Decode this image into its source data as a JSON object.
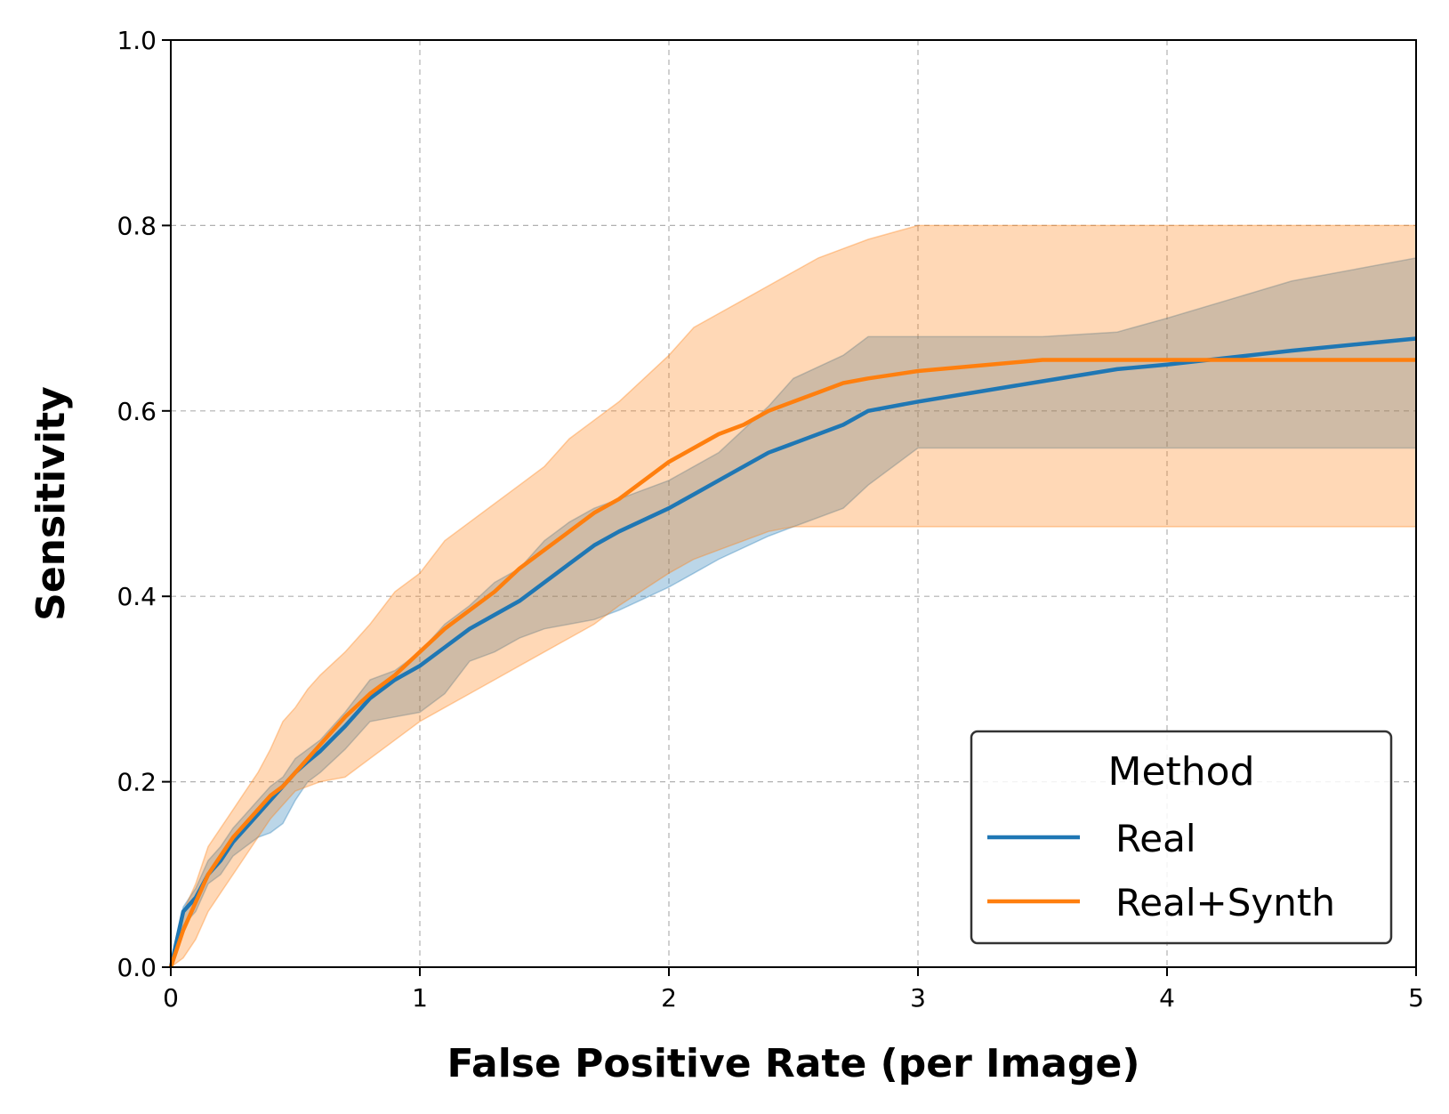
{
  "colors": {
    "real": "#1f77b4",
    "real_synth": "#ff7f0e"
  },
  "chart_data": {
    "type": "line",
    "title": "",
    "xlabel": "False Positive Rate (per Image)",
    "ylabel": "Sensitivity",
    "xlim": [
      0,
      5
    ],
    "ylim": [
      0,
      1.0
    ],
    "grid": true,
    "xticks": [
      0,
      1,
      2,
      3,
      4,
      5
    ],
    "xtick_labels": [
      "0",
      "1",
      "2",
      "3",
      "4",
      "5"
    ],
    "yticks": [
      0.0,
      0.2,
      0.4,
      0.6,
      0.8,
      1.0
    ],
    "ytick_labels": [
      "0.0",
      "0.2",
      "0.4",
      "0.6",
      "0.8",
      "1.0"
    ],
    "legend": {
      "title": "Method",
      "position": "lower-right"
    },
    "series": [
      {
        "name": "Real",
        "color": "#1f77b4",
        "x": [
          0,
          0.05,
          0.1,
          0.15,
          0.2,
          0.25,
          0.3,
          0.35,
          0.4,
          0.45,
          0.5,
          0.55,
          0.6,
          0.7,
          0.8,
          0.9,
          1.0,
          1.1,
          1.2,
          1.3,
          1.4,
          1.5,
          1.6,
          1.7,
          1.8,
          2.0,
          2.1,
          2.2,
          2.4,
          2.5,
          2.7,
          2.8,
          3.0,
          3.5,
          3.8,
          4.0,
          4.5,
          5.0
        ],
        "y": [
          0.0,
          0.06,
          0.075,
          0.1,
          0.115,
          0.135,
          0.15,
          0.165,
          0.18,
          0.195,
          0.21,
          0.222,
          0.233,
          0.26,
          0.29,
          0.31,
          0.325,
          0.345,
          0.365,
          0.38,
          0.395,
          0.415,
          0.435,
          0.455,
          0.47,
          0.495,
          0.51,
          0.525,
          0.555,
          0.565,
          0.585,
          0.6,
          0.61,
          0.632,
          0.645,
          0.65,
          0.665,
          0.678
        ],
        "lower": [
          0.0,
          0.045,
          0.06,
          0.09,
          0.1,
          0.12,
          0.13,
          0.14,
          0.145,
          0.155,
          0.18,
          0.2,
          0.21,
          0.235,
          0.265,
          0.27,
          0.275,
          0.295,
          0.33,
          0.34,
          0.355,
          0.365,
          0.37,
          0.375,
          0.385,
          0.41,
          0.425,
          0.44,
          0.465,
          0.475,
          0.495,
          0.52,
          0.56,
          0.56,
          0.56,
          0.56,
          0.56,
          0.56
        ],
        "upper": [
          0.0,
          0.065,
          0.085,
          0.115,
          0.13,
          0.15,
          0.165,
          0.18,
          0.195,
          0.205,
          0.225,
          0.235,
          0.245,
          0.275,
          0.31,
          0.32,
          0.34,
          0.37,
          0.39,
          0.415,
          0.43,
          0.46,
          0.48,
          0.495,
          0.505,
          0.525,
          0.54,
          0.555,
          0.605,
          0.635,
          0.66,
          0.68,
          0.68,
          0.68,
          0.685,
          0.7,
          0.74,
          0.765
        ]
      },
      {
        "name": "Real+Synth",
        "color": "#ff7f0e",
        "x": [
          0,
          0.05,
          0.1,
          0.15,
          0.2,
          0.25,
          0.3,
          0.35,
          0.4,
          0.45,
          0.5,
          0.55,
          0.6,
          0.7,
          0.8,
          0.9,
          1.0,
          1.1,
          1.2,
          1.3,
          1.4,
          1.5,
          1.6,
          1.7,
          1.8,
          2.0,
          2.1,
          2.2,
          2.3,
          2.4,
          2.5,
          2.6,
          2.7,
          2.8,
          3.0,
          3.5,
          4.0,
          5.0
        ],
        "y": [
          0.0,
          0.04,
          0.07,
          0.1,
          0.12,
          0.14,
          0.155,
          0.17,
          0.185,
          0.195,
          0.21,
          0.225,
          0.24,
          0.27,
          0.295,
          0.315,
          0.34,
          0.365,
          0.385,
          0.405,
          0.43,
          0.45,
          0.47,
          0.49,
          0.505,
          0.545,
          0.56,
          0.575,
          0.585,
          0.6,
          0.61,
          0.62,
          0.63,
          0.635,
          0.643,
          0.655,
          0.655,
          0.655
        ],
        "lower": [
          0.0,
          0.01,
          0.03,
          0.06,
          0.08,
          0.1,
          0.12,
          0.14,
          0.16,
          0.175,
          0.19,
          0.195,
          0.2,
          0.205,
          0.225,
          0.245,
          0.265,
          0.28,
          0.295,
          0.31,
          0.325,
          0.34,
          0.355,
          0.37,
          0.39,
          0.425,
          0.44,
          0.45,
          0.46,
          0.47,
          0.475,
          0.475,
          0.475,
          0.475,
          0.475,
          0.475,
          0.475,
          0.475
        ],
        "upper": [
          0.0,
          0.06,
          0.09,
          0.13,
          0.15,
          0.17,
          0.19,
          0.21,
          0.235,
          0.265,
          0.28,
          0.3,
          0.315,
          0.34,
          0.37,
          0.405,
          0.425,
          0.46,
          0.48,
          0.5,
          0.52,
          0.54,
          0.57,
          0.59,
          0.61,
          0.66,
          0.69,
          0.705,
          0.72,
          0.735,
          0.75,
          0.765,
          0.775,
          0.785,
          0.8,
          0.8,
          0.8,
          0.8
        ]
      }
    ]
  }
}
